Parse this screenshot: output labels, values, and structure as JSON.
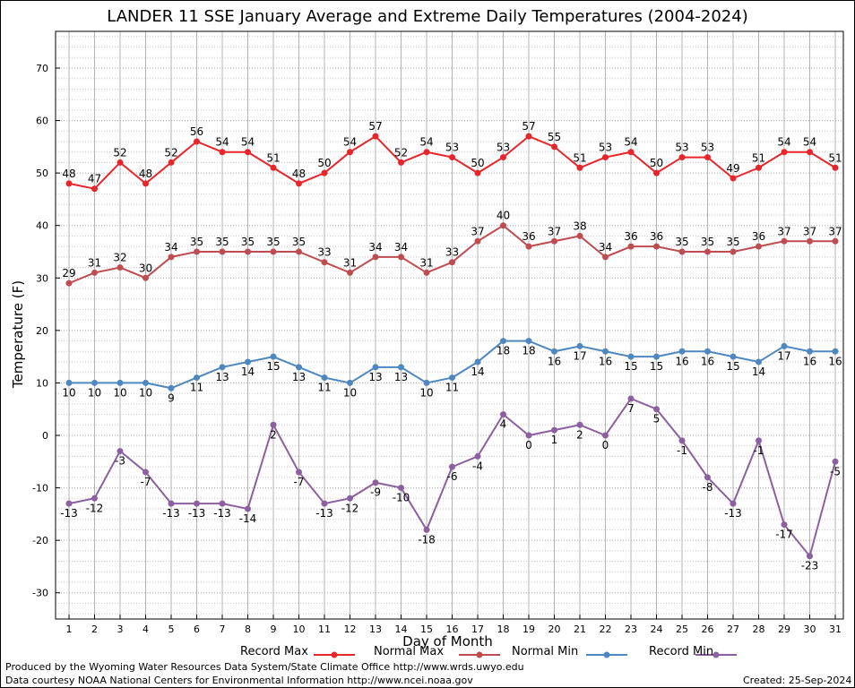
{
  "chart_data": {
    "type": "line",
    "title": "LANDER 11 SSE January Average and Extreme Daily Temperatures (2004-2024)",
    "xlabel": "Day of Month",
    "ylabel": "Temperature (F)",
    "x": [
      1,
      2,
      3,
      4,
      5,
      6,
      7,
      8,
      9,
      10,
      11,
      12,
      13,
      14,
      15,
      16,
      17,
      18,
      19,
      20,
      21,
      22,
      23,
      24,
      25,
      26,
      27,
      28,
      29,
      30,
      31
    ],
    "ylim": [
      -35,
      77
    ],
    "yticks": [
      -30,
      -20,
      -10,
      0,
      10,
      20,
      30,
      40,
      50,
      60,
      70
    ],
    "grid": true,
    "series": [
      {
        "name": "Record Max",
        "color": "#e8262a",
        "labelPos": "above",
        "values": [
          48,
          47,
          52,
          48,
          52,
          56,
          54,
          54,
          51,
          48,
          50,
          54,
          57,
          52,
          54,
          53,
          50,
          53,
          57,
          55,
          51,
          53,
          54,
          50,
          53,
          53,
          49,
          51,
          54,
          54,
          51
        ]
      },
      {
        "name": "Normal Max",
        "color": "#bf4c51",
        "labelPos": "above",
        "values": [
          29,
          31,
          32,
          30,
          34,
          35,
          35,
          35,
          35,
          35,
          33,
          31,
          34,
          34,
          31,
          33,
          37,
          40,
          36,
          37,
          38,
          34,
          36,
          36,
          35,
          35,
          35,
          36,
          37,
          37,
          37
        ]
      },
      {
        "name": "Normal Min",
        "color": "#4f88c0",
        "labelPos": "below",
        "values": [
          10,
          10,
          10,
          10,
          9,
          11,
          13,
          14,
          15,
          13,
          11,
          10,
          13,
          13,
          10,
          11,
          14,
          18,
          18,
          16,
          17,
          16,
          15,
          15,
          16,
          16,
          15,
          14,
          17,
          16,
          16
        ]
      },
      {
        "name": "Record Min",
        "color": "#8c60a0",
        "labelPos": "below",
        "values": [
          -13,
          -12,
          -3,
          -7,
          -13,
          -13,
          -13,
          -14,
          2,
          -7,
          -13,
          -12,
          -9,
          -10,
          -18,
          -6,
          -4,
          4,
          0,
          1,
          2,
          0,
          7,
          5,
          -1,
          -8,
          -13,
          -1,
          -17,
          -23,
          -5
        ]
      }
    ]
  },
  "footer": {
    "produced": "Produced by the Wyoming Water Resources Data System/State Climate Office http://www.wrds.uwyo.edu",
    "courtesy": "Data courtesy NOAA National Centers for Environmental Information http://www.ncei.noaa.gov",
    "created": "Created: 25-Sep-2024"
  }
}
